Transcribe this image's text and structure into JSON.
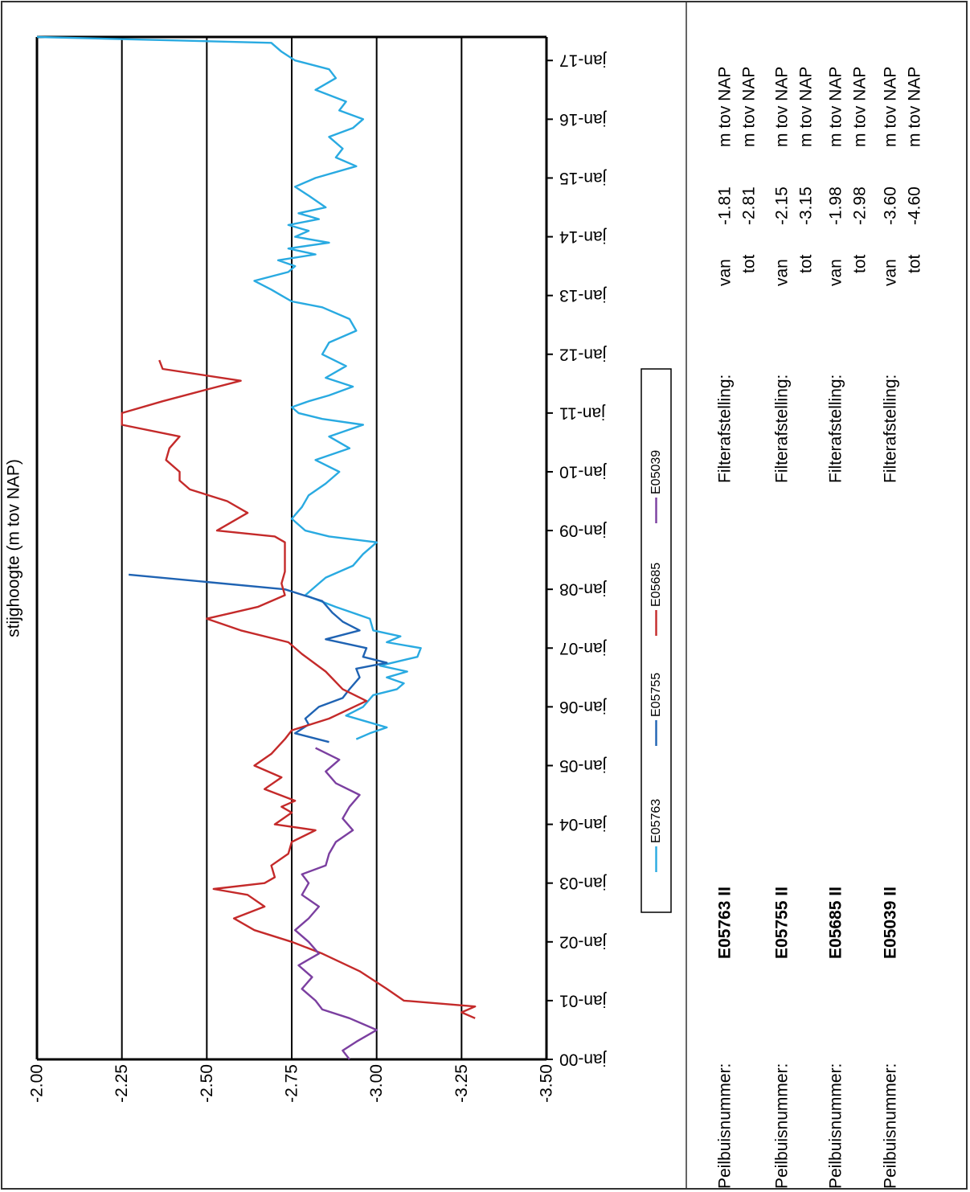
{
  "chart_data": {
    "type": "line",
    "ylabel": "stijghoogte (m tov NAP)",
    "ylim": [
      -3.5,
      -2.0
    ],
    "yticks": [
      -2.0,
      -2.25,
      -2.5,
      -2.75,
      -3.0,
      -3.25,
      -3.5
    ],
    "ytick_labels": [
      "-2.00",
      "-2.25",
      "-2.50",
      "-2.75",
      "-3.00",
      "-3.25",
      "-3.50"
    ],
    "xlim": [
      2000,
      2017.4
    ],
    "xticks": [
      2000,
      2001,
      2002,
      2003,
      2004,
      2005,
      2006,
      2007,
      2008,
      2009,
      2010,
      2011,
      2012,
      2013,
      2014,
      2015,
      2016,
      2017
    ],
    "xtick_labels": [
      "jan-00",
      "jan-01",
      "jan-02",
      "jan-03",
      "jan-04",
      "jan-05",
      "jan-06",
      "jan-07",
      "jan-08",
      "jan-09",
      "jan-10",
      "jan-11",
      "jan-12",
      "jan-13",
      "jan-14",
      "jan-15",
      "jan-16",
      "jan-17"
    ],
    "grid": true,
    "legend_position": "right",
    "series": [
      {
        "name": "E05763",
        "color": "#29aae1",
        "points": [
          [
            2005.45,
            -2.94
          ],
          [
            2005.55,
            -2.98
          ],
          [
            2005.65,
            -3.03
          ],
          [
            2005.75,
            -2.97
          ],
          [
            2005.85,
            -2.91
          ],
          [
            2006.0,
            -2.96
          ],
          [
            2006.2,
            -2.99
          ],
          [
            2006.3,
            -3.06
          ],
          [
            2006.4,
            -3.08
          ],
          [
            2006.5,
            -3.03
          ],
          [
            2006.6,
            -3.09
          ],
          [
            2006.7,
            -3.01
          ],
          [
            2006.85,
            -3.12
          ],
          [
            2007.0,
            -3.13
          ],
          [
            2007.1,
            -3.03
          ],
          [
            2007.2,
            -3.07
          ],
          [
            2007.3,
            -2.99
          ],
          [
            2007.5,
            -2.98
          ],
          [
            2007.7,
            -2.88
          ],
          [
            2007.9,
            -2.79
          ],
          [
            2008.1,
            -2.83
          ],
          [
            2008.2,
            -2.85
          ],
          [
            2008.4,
            -2.93
          ],
          [
            2008.6,
            -2.96
          ],
          [
            2008.8,
            -3.0
          ],
          [
            2008.9,
            -2.86
          ],
          [
            2009.0,
            -2.79
          ],
          [
            2009.2,
            -2.75
          ],
          [
            2009.4,
            -2.78
          ],
          [
            2009.6,
            -2.8
          ],
          [
            2009.8,
            -2.85
          ],
          [
            2010.0,
            -2.89
          ],
          [
            2010.2,
            -2.82
          ],
          [
            2010.4,
            -2.92
          ],
          [
            2010.6,
            -2.86
          ],
          [
            2010.8,
            -2.96
          ],
          [
            2010.9,
            -2.84
          ],
          [
            2011.0,
            -2.77
          ],
          [
            2011.1,
            -2.75
          ],
          [
            2011.2,
            -2.8
          ],
          [
            2011.3,
            -2.86
          ],
          [
            2011.45,
            -2.93
          ],
          [
            2011.6,
            -2.85
          ],
          [
            2011.8,
            -2.91
          ],
          [
            2012.0,
            -2.84
          ],
          [
            2012.2,
            -2.86
          ],
          [
            2012.4,
            -2.94
          ],
          [
            2012.6,
            -2.92
          ],
          [
            2012.8,
            -2.84
          ],
          [
            2012.9,
            -2.75
          ],
          [
            2013.0,
            -2.72
          ],
          [
            2013.1,
            -2.69
          ],
          [
            2013.25,
            -2.64
          ],
          [
            2013.4,
            -2.74
          ],
          [
            2013.5,
            -2.76
          ],
          [
            2013.6,
            -2.71
          ],
          [
            2013.7,
            -2.82
          ],
          [
            2013.8,
            -2.74
          ],
          [
            2013.9,
            -2.86
          ],
          [
            2014.0,
            -2.76
          ],
          [
            2014.1,
            -2.8
          ],
          [
            2014.2,
            -2.74
          ],
          [
            2014.3,
            -2.83
          ],
          [
            2014.4,
            -2.77
          ],
          [
            2014.5,
            -2.85
          ],
          [
            2014.7,
            -2.8
          ],
          [
            2014.85,
            -2.76
          ],
          [
            2015.0,
            -2.82
          ],
          [
            2015.2,
            -2.94
          ],
          [
            2015.35,
            -2.88
          ],
          [
            2015.5,
            -2.9
          ],
          [
            2015.7,
            -2.86
          ],
          [
            2015.85,
            -2.93
          ],
          [
            2016.0,
            -2.96
          ],
          [
            2016.15,
            -2.89
          ],
          [
            2016.3,
            -2.91
          ],
          [
            2016.5,
            -2.82
          ],
          [
            2016.7,
            -2.88
          ],
          [
            2016.85,
            -2.86
          ],
          [
            2017.0,
            -2.76
          ],
          [
            2017.15,
            -2.72
          ],
          [
            2017.3,
            -2.69
          ],
          [
            2017.4,
            -2.0
          ]
        ]
      },
      {
        "name": "E05755",
        "color": "#1f63b3",
        "points": [
          [
            2005.4,
            -2.86
          ],
          [
            2005.55,
            -2.76
          ],
          [
            2005.7,
            -2.8
          ],
          [
            2005.8,
            -2.79
          ],
          [
            2006.0,
            -2.83
          ],
          [
            2006.15,
            -2.9
          ],
          [
            2006.3,
            -2.92
          ],
          [
            2006.5,
            -2.95
          ],
          [
            2006.65,
            -2.94
          ],
          [
            2006.75,
            -3.03
          ],
          [
            2006.85,
            -2.96
          ],
          [
            2007.0,
            -2.97
          ],
          [
            2007.15,
            -2.85
          ],
          [
            2007.3,
            -2.95
          ],
          [
            2007.45,
            -2.9
          ],
          [
            2007.6,
            -2.87
          ],
          [
            2007.8,
            -2.84
          ],
          [
            2008.0,
            -2.73
          ],
          [
            2008.25,
            -2.27
          ]
        ]
      },
      {
        "name": "E05685",
        "color": "#c42a2a",
        "points": [
          [
            2000.7,
            -3.29
          ],
          [
            2000.8,
            -3.25
          ],
          [
            2000.9,
            -3.29
          ],
          [
            2001.0,
            -3.08
          ],
          [
            2001.2,
            -3.03
          ],
          [
            2001.5,
            -2.95
          ],
          [
            2001.8,
            -2.84
          ],
          [
            2002.0,
            -2.75
          ],
          [
            2002.2,
            -2.64
          ],
          [
            2002.4,
            -2.58
          ],
          [
            2002.6,
            -2.67
          ],
          [
            2002.8,
            -2.62
          ],
          [
            2002.9,
            -2.52
          ],
          [
            2003.0,
            -2.67
          ],
          [
            2003.1,
            -2.7
          ],
          [
            2003.3,
            -2.69
          ],
          [
            2003.5,
            -2.74
          ],
          [
            2003.7,
            -2.75
          ],
          [
            2003.9,
            -2.82
          ],
          [
            2004.0,
            -2.7
          ],
          [
            2004.2,
            -2.75
          ],
          [
            2004.3,
            -2.72
          ],
          [
            2004.4,
            -2.76
          ],
          [
            2004.6,
            -2.67
          ],
          [
            2004.8,
            -2.72
          ],
          [
            2005.0,
            -2.64
          ],
          [
            2005.2,
            -2.69
          ],
          [
            2005.45,
            -2.73
          ],
          [
            2005.6,
            -2.75
          ],
          [
            2005.8,
            -2.86
          ],
          [
            2006.1,
            -2.97
          ],
          [
            2006.3,
            -2.9
          ],
          [
            2006.6,
            -2.85
          ],
          [
            2006.9,
            -2.78
          ],
          [
            2007.1,
            -2.74
          ],
          [
            2007.3,
            -2.6
          ],
          [
            2007.5,
            -2.5
          ],
          [
            2007.7,
            -2.65
          ],
          [
            2007.9,
            -2.73
          ],
          [
            2008.1,
            -2.72
          ],
          [
            2008.3,
            -2.73
          ],
          [
            2008.6,
            -2.73
          ],
          [
            2008.8,
            -2.73
          ],
          [
            2008.9,
            -2.7
          ],
          [
            2009.0,
            -2.53
          ],
          [
            2009.3,
            -2.62
          ],
          [
            2009.5,
            -2.56
          ],
          [
            2009.7,
            -2.45
          ],
          [
            2009.85,
            -2.42
          ],
          [
            2010.0,
            -2.42
          ],
          [
            2010.2,
            -2.38
          ],
          [
            2010.4,
            -2.39
          ],
          [
            2010.6,
            -2.42
          ],
          [
            2010.8,
            -2.25
          ],
          [
            2011.0,
            -2.25
          ],
          [
            2011.2,
            -2.37
          ],
          [
            2011.4,
            -2.5
          ],
          [
            2011.55,
            -2.6
          ],
          [
            2011.75,
            -2.37
          ],
          [
            2011.9,
            -2.36
          ]
        ]
      },
      {
        "name": "E05039",
        "color": "#7b3fa0",
        "points": [
          [
            2000.0,
            -2.92
          ],
          [
            2000.15,
            -2.9
          ],
          [
            2000.3,
            -2.94
          ],
          [
            2000.5,
            -3.0
          ],
          [
            2000.7,
            -2.92
          ],
          [
            2000.85,
            -2.84
          ],
          [
            2001.0,
            -2.82
          ],
          [
            2001.2,
            -2.78
          ],
          [
            2001.4,
            -2.81
          ],
          [
            2001.6,
            -2.77
          ],
          [
            2001.8,
            -2.83
          ],
          [
            2002.0,
            -2.8
          ],
          [
            2002.2,
            -2.76
          ],
          [
            2002.4,
            -2.8
          ],
          [
            2002.6,
            -2.83
          ],
          [
            2002.8,
            -2.78
          ],
          [
            2003.0,
            -2.8
          ],
          [
            2003.15,
            -2.78
          ],
          [
            2003.3,
            -2.85
          ],
          [
            2003.5,
            -2.86
          ],
          [
            2003.7,
            -2.88
          ],
          [
            2003.9,
            -2.93
          ],
          [
            2004.1,
            -2.9
          ],
          [
            2004.3,
            -2.92
          ],
          [
            2004.5,
            -2.95
          ],
          [
            2004.7,
            -2.88
          ],
          [
            2004.9,
            -2.85
          ],
          [
            2005.1,
            -2.89
          ],
          [
            2005.3,
            -2.82
          ]
        ]
      }
    ]
  },
  "info": {
    "rows": [
      {
        "label": "Peilbuisnummer:",
        "id": "E05763 II",
        "filter_label": "Filterafstelling:",
        "van_label": "van",
        "van_value": "-1.81",
        "tot_label": "tot",
        "tot_value": "-2.81",
        "unit": "m tov NAP"
      },
      {
        "label": "Peilbuisnummer:",
        "id": "E05755 II",
        "filter_label": "Filterafstelling:",
        "van_label": "van",
        "van_value": "-2.15",
        "tot_label": "tot",
        "tot_value": "-3.15",
        "unit": "m tov NAP"
      },
      {
        "label": "Peilbuisnummer:",
        "id": "E05685 II",
        "filter_label": "Filterafstelling:",
        "van_label": "van",
        "van_value": "-1.98",
        "tot_label": "tot",
        "tot_value": "-2.98",
        "unit": "m tov NAP"
      },
      {
        "label": "Peilbuisnummer:",
        "id": "E05039 II",
        "filter_label": "Filterafstelling:",
        "van_label": "van",
        "van_value": "-3.60",
        "tot_label": "tot",
        "tot_value": "-4.60",
        "unit": "m tov NAP"
      }
    ]
  }
}
